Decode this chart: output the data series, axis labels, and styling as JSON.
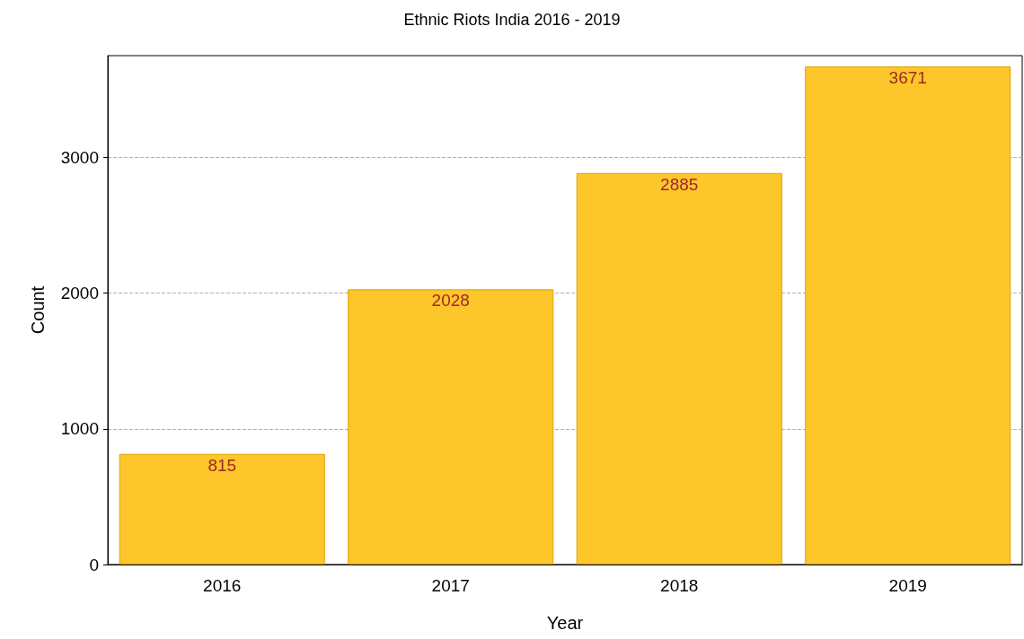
{
  "chart_data": {
    "type": "bar",
    "title": "Ethnic Riots India 2016 - 2019",
    "xlabel": "Year",
    "ylabel": "Count",
    "categories": [
      "2016",
      "2017",
      "2018",
      "2019"
    ],
    "values": [
      815,
      2028,
      2885,
      3671
    ],
    "color": "#fdc62a",
    "ylim": [
      0,
      3750
    ],
    "yticks": [
      0,
      1000,
      2000,
      3000
    ],
    "grid": "y",
    "data_labels": true
  }
}
